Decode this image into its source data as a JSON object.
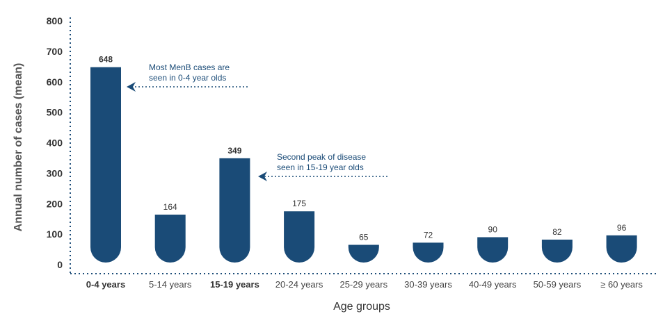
{
  "chart_data": {
    "type": "bar",
    "categories": [
      "0-4 years",
      "5-14 years",
      "15-19 years",
      "20-24 years",
      "25-29 years",
      "30-39 years",
      "40-49 years",
      "50-59 years",
      "≥ 60 years"
    ],
    "values": [
      648,
      164,
      349,
      175,
      65,
      72,
      90,
      82,
      96
    ],
    "value_labels": [
      "648",
      "164",
      "349",
      "175",
      "65",
      "72",
      "90",
      "82",
      "96"
    ],
    "bold_categories": [
      "0-4 years",
      "15-19 years"
    ],
    "ylabel": "Annual number of cases (mean)",
    "xlabel": "Age groups",
    "ylim": [
      0,
      800
    ],
    "yticks": [
      "0",
      "100",
      "200",
      "300",
      "400",
      "500",
      "600",
      "700",
      "800"
    ],
    "grid": false,
    "bar_color": "#1a4b77",
    "annotation_color": "#1a4b77",
    "annotations": [
      {
        "category": "0-4 years",
        "lines": [
          "Most MenB cases are",
          "seen in 0-4 year olds"
        ]
      },
      {
        "category": "15-19 years",
        "lines": [
          "Second peak of disease",
          "seen in 15-19 year olds"
        ]
      }
    ]
  }
}
